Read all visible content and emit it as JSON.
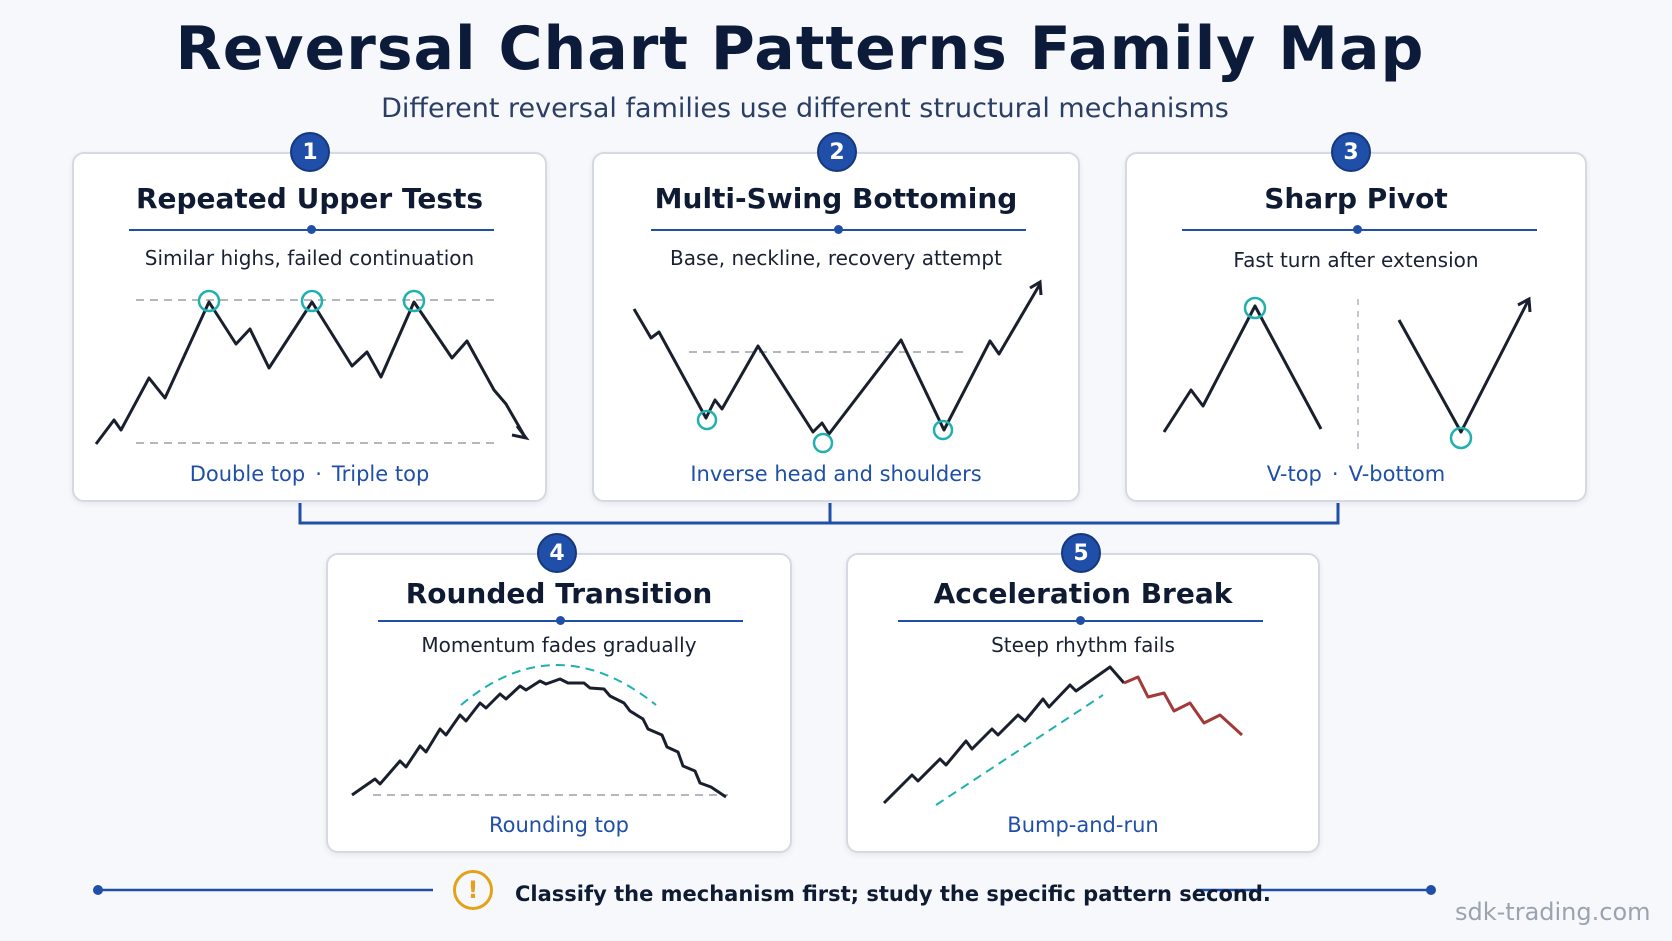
{
  "title": "Reversal Chart Patterns Family Map",
  "subtitle": "Different reversal families use different structural mechanisms",
  "cards": [
    {
      "number": "1",
      "title": "Repeated Upper Tests",
      "description": "Similar highs, failed continuation",
      "examples": [
        "Double top",
        "Triple top"
      ],
      "separator": "·"
    },
    {
      "number": "2",
      "title": "Multi-Swing Bottoming",
      "description": "Base, neckline, recovery attempt",
      "examples": [
        "Inverse head and shoulders"
      ]
    },
    {
      "number": "3",
      "title": "Sharp Pivot",
      "description": "Fast turn after extension",
      "examples": [
        "V-top",
        "V-bottom"
      ],
      "separator": "·"
    },
    {
      "number": "4",
      "title": "Rounded  Transition",
      "description": "Momentum fades gradually",
      "examples": [
        "Rounding top"
      ]
    },
    {
      "number": "5",
      "title": "Acceleration Break",
      "description": "Steep rhythm fails",
      "examples": [
        "Bump-and-run"
      ]
    }
  ],
  "footer": {
    "note": "Classify the mechanism first; study the specific pattern second.",
    "icon": "warning-icon",
    "icon_glyph": "!"
  },
  "watermark": "sdk-trading.com",
  "colors": {
    "accent": "#1f4fa8",
    "price_line": "#1a1f2e",
    "highlight": "#20b0b0",
    "break_line": "#a33a3a",
    "warning": "#e3a21a"
  }
}
